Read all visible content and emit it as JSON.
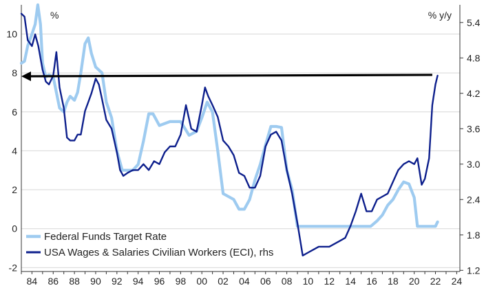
{
  "chart_data": {
    "type": "line",
    "left_axis": {
      "unit": "%",
      "ylim": [
        -2.2,
        11.5
      ],
      "ticks": [
        -2,
        0,
        2,
        4,
        6,
        8,
        10
      ]
    },
    "right_axis": {
      "unit": "% y/y",
      "ylim": [
        1.18,
        5.7
      ],
      "ticks": [
        1.2,
        1.8,
        2.4,
        3.0,
        3.6,
        4.2,
        4.8,
        5.4
      ]
    },
    "x_axis": {
      "xlim": [
        1983,
        2024.3
      ],
      "ticks": [
        1984,
        1986,
        1988,
        1990,
        1992,
        1994,
        1996,
        1998,
        2000,
        2002,
        2004,
        2006,
        2008,
        2010,
        2012,
        2014,
        2016,
        2018,
        2020,
        2022,
        2024
      ],
      "tick_labels": [
        "84",
        "86",
        "88",
        "90",
        "92",
        "94",
        "96",
        "98",
        "00",
        "02",
        "04",
        "06",
        "08",
        "10",
        "12",
        "14",
        "16",
        "18",
        "20",
        "22",
        "24"
      ]
    },
    "grid": true,
    "legend_position": "bottom-left",
    "colors": {
      "fed": "#9ecbf0",
      "eci": "#0d1f8c",
      "arrow": "#000000",
      "grid": "#d7d7d7"
    },
    "series": [
      {
        "name": "Federal Funds Target Rate",
        "axis": "left",
        "points": [
          [
            1983.0,
            8.5
          ],
          [
            1983.3,
            8.6
          ],
          [
            1983.6,
            9.4
          ],
          [
            1984.0,
            10.0
          ],
          [
            1984.3,
            10.5
          ],
          [
            1984.55,
            11.5
          ],
          [
            1984.8,
            10.5
          ],
          [
            1985.0,
            8.5
          ],
          [
            1985.3,
            7.8
          ],
          [
            1985.6,
            7.9
          ],
          [
            1986.0,
            7.8
          ],
          [
            1986.3,
            7.0
          ],
          [
            1986.6,
            6.2
          ],
          [
            1987.0,
            6.0
          ],
          [
            1987.3,
            6.5
          ],
          [
            1987.6,
            6.8
          ],
          [
            1988.0,
            6.6
          ],
          [
            1988.3,
            7.0
          ],
          [
            1988.6,
            8.0
          ],
          [
            1989.0,
            9.5
          ],
          [
            1989.3,
            9.8
          ],
          [
            1989.6,
            9.0
          ],
          [
            1990.0,
            8.3
          ],
          [
            1990.6,
            8.0
          ],
          [
            1991.0,
            6.5
          ],
          [
            1991.5,
            5.7
          ],
          [
            1992.0,
            4.0
          ],
          [
            1992.5,
            3.0
          ],
          [
            1993.0,
            3.0
          ],
          [
            1993.5,
            3.0
          ],
          [
            1994.0,
            3.3
          ],
          [
            1994.5,
            4.5
          ],
          [
            1995.0,
            5.9
          ],
          [
            1995.4,
            5.9
          ],
          [
            1996.0,
            5.3
          ],
          [
            1997.0,
            5.5
          ],
          [
            1998.0,
            5.5
          ],
          [
            1998.8,
            4.8
          ],
          [
            1999.5,
            5.0
          ],
          [
            2000.0,
            5.7
          ],
          [
            2000.5,
            6.5
          ],
          [
            2001.0,
            6.0
          ],
          [
            2001.5,
            4.0
          ],
          [
            2002.0,
            1.8
          ],
          [
            2003.0,
            1.5
          ],
          [
            2003.5,
            1.0
          ],
          [
            2004.0,
            1.0
          ],
          [
            2004.5,
            1.5
          ],
          [
            2005.0,
            2.5
          ],
          [
            2005.5,
            3.3
          ],
          [
            2006.0,
            4.3
          ],
          [
            2006.5,
            5.25
          ],
          [
            2007.0,
            5.25
          ],
          [
            2007.5,
            5.2
          ],
          [
            2008.0,
            3.0
          ],
          [
            2008.5,
            2.0
          ],
          [
            2009.0,
            0.12
          ],
          [
            2015.9,
            0.12
          ],
          [
            2016.5,
            0.4
          ],
          [
            2017.0,
            0.7
          ],
          [
            2017.5,
            1.2
          ],
          [
            2018.0,
            1.5
          ],
          [
            2018.5,
            2.0
          ],
          [
            2019.0,
            2.4
          ],
          [
            2019.5,
            2.3
          ],
          [
            2020.0,
            1.6
          ],
          [
            2020.3,
            0.12
          ],
          [
            2022.0,
            0.12
          ],
          [
            2022.2,
            0.35
          ]
        ]
      },
      {
        "name": "USA Wages & Salaries Civilian Workers (ECI), rhs",
        "axis": "right",
        "points": [
          [
            1983.0,
            5.55
          ],
          [
            1983.3,
            5.5
          ],
          [
            1983.6,
            5.1
          ],
          [
            1984.0,
            5.0
          ],
          [
            1984.3,
            5.2
          ],
          [
            1984.6,
            5.0
          ],
          [
            1985.0,
            4.6
          ],
          [
            1985.3,
            4.4
          ],
          [
            1985.6,
            4.35
          ],
          [
            1986.0,
            4.5
          ],
          [
            1986.3,
            4.9
          ],
          [
            1986.6,
            4.3
          ],
          [
            1987.0,
            3.95
          ],
          [
            1987.3,
            3.45
          ],
          [
            1987.6,
            3.4
          ],
          [
            1988.0,
            3.4
          ],
          [
            1988.3,
            3.5
          ],
          [
            1988.6,
            3.5
          ],
          [
            1989.0,
            3.9
          ],
          [
            1989.3,
            4.05
          ],
          [
            1989.6,
            4.2
          ],
          [
            1990.0,
            4.45
          ],
          [
            1990.3,
            4.35
          ],
          [
            1990.6,
            4.1
          ],
          [
            1991.0,
            3.75
          ],
          [
            1991.5,
            3.6
          ],
          [
            1992.0,
            3.2
          ],
          [
            1992.3,
            2.9
          ],
          [
            1992.6,
            2.8
          ],
          [
            1993.0,
            2.85
          ],
          [
            1993.5,
            2.9
          ],
          [
            1994.0,
            2.9
          ],
          [
            1994.5,
            3.0
          ],
          [
            1995.0,
            2.9
          ],
          [
            1995.5,
            3.05
          ],
          [
            1996.0,
            3.0
          ],
          [
            1996.5,
            3.2
          ],
          [
            1997.0,
            3.3
          ],
          [
            1997.5,
            3.3
          ],
          [
            1998.0,
            3.5
          ],
          [
            1998.5,
            4.0
          ],
          [
            1999.0,
            3.6
          ],
          [
            1999.5,
            3.55
          ],
          [
            2000.0,
            4.0
          ],
          [
            2000.3,
            4.3
          ],
          [
            2000.6,
            4.15
          ],
          [
            2001.0,
            4.0
          ],
          [
            2001.5,
            3.8
          ],
          [
            2002.0,
            3.4
          ],
          [
            2002.5,
            3.3
          ],
          [
            2003.0,
            3.15
          ],
          [
            2003.5,
            2.85
          ],
          [
            2004.0,
            2.8
          ],
          [
            2004.5,
            2.6
          ],
          [
            2005.0,
            2.6
          ],
          [
            2005.5,
            2.8
          ],
          [
            2006.0,
            3.3
          ],
          [
            2006.5,
            3.5
          ],
          [
            2007.0,
            3.55
          ],
          [
            2007.5,
            3.4
          ],
          [
            2008.0,
            2.9
          ],
          [
            2008.5,
            2.5
          ],
          [
            2009.0,
            2.0
          ],
          [
            2009.5,
            1.45
          ],
          [
            2010.0,
            1.5
          ],
          [
            2010.5,
            1.55
          ],
          [
            2011.0,
            1.6
          ],
          [
            2011.5,
            1.6
          ],
          [
            2012.0,
            1.6
          ],
          [
            2012.5,
            1.65
          ],
          [
            2013.0,
            1.7
          ],
          [
            2013.5,
            1.75
          ],
          [
            2014.0,
            1.95
          ],
          [
            2014.5,
            2.2
          ],
          [
            2015.0,
            2.5
          ],
          [
            2015.5,
            2.2
          ],
          [
            2016.0,
            2.2
          ],
          [
            2016.5,
            2.4
          ],
          [
            2017.0,
            2.45
          ],
          [
            2017.5,
            2.5
          ],
          [
            2018.0,
            2.7
          ],
          [
            2018.5,
            2.9
          ],
          [
            2019.0,
            3.0
          ],
          [
            2019.5,
            3.05
          ],
          [
            2020.0,
            3.0
          ],
          [
            2020.3,
            3.1
          ],
          [
            2020.7,
            2.65
          ],
          [
            2021.0,
            2.75
          ],
          [
            2021.4,
            3.1
          ],
          [
            2021.7,
            4.0
          ],
          [
            2022.0,
            4.35
          ],
          [
            2022.2,
            4.5
          ]
        ]
      }
    ],
    "annotations": [
      {
        "type": "arrow",
        "axis": "left",
        "y": 7.9,
        "x_from": 2021.7,
        "x_to": 1983.0
      }
    ]
  }
}
